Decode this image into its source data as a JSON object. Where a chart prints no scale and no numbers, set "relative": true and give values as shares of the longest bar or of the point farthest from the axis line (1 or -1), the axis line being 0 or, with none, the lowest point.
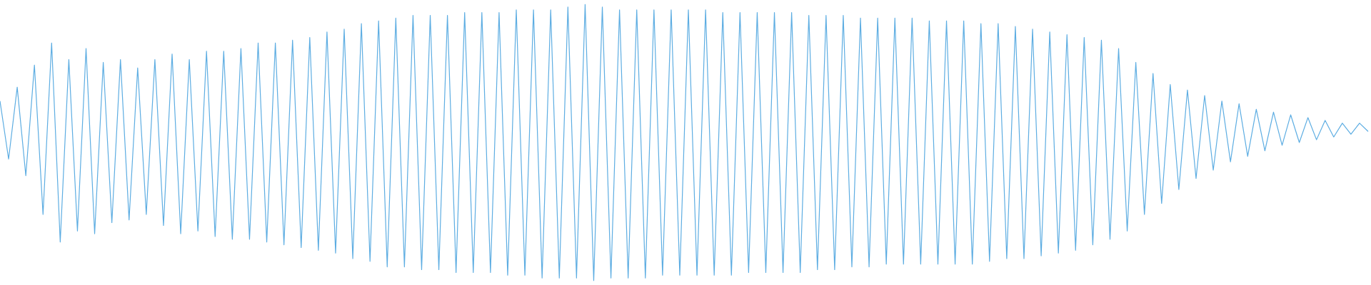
{
  "chart_data": {
    "type": "line",
    "relative": true,
    "tick_labels": false,
    "grid": false,
    "marker": "none",
    "color": "#5dade2",
    "categories": [
      null,
      null,
      null,
      null,
      null,
      null,
      null,
      null,
      null,
      null,
      null,
      null,
      null,
      null,
      null,
      null,
      null,
      null,
      null,
      null,
      null,
      null,
      null,
      null,
      null,
      null,
      null,
      null,
      null,
      null,
      null,
      null,
      null,
      null,
      null,
      null,
      null,
      null,
      null,
      null,
      null,
      null,
      null,
      null,
      null,
      null,
      null,
      null,
      null,
      null,
      null,
      null,
      null,
      null,
      null,
      null,
      null,
      null,
      null,
      null,
      null,
      null,
      null,
      null,
      null,
      null,
      null,
      null,
      null,
      null,
      null,
      null,
      null,
      null,
      null,
      null,
      null,
      null,
      null,
      null,
      null,
      null,
      null,
      null,
      null,
      null,
      null,
      null,
      null,
      null,
      null,
      null,
      null,
      null,
      null,
      null,
      null,
      null,
      null,
      null,
      null,
      null,
      null,
      null,
      null,
      null,
      null,
      null,
      null,
      null,
      null,
      null,
      null,
      null,
      null,
      null,
      null,
      null,
      null,
      null,
      null,
      null,
      null,
      null,
      null,
      null,
      null,
      null,
      null,
      null,
      null,
      null,
      null,
      null,
      null,
      null,
      null,
      null,
      null,
      null,
      null,
      null,
      null,
      null,
      null,
      null,
      null,
      null,
      null,
      null,
      null,
      null,
      null,
      null,
      null,
      null,
      null,
      null,
      null,
      null
    ],
    "values": [
      0.65,
      0.44,
      0.7,
      0.38,
      0.78,
      0.24,
      0.86,
      0.14,
      0.8,
      0.18,
      0.84,
      0.17,
      0.79,
      0.21,
      0.8,
      0.22,
      0.77,
      0.24,
      0.8,
      0.2,
      0.82,
      0.17,
      0.8,
      0.18,
      0.83,
      0.16,
      0.83,
      0.15,
      0.84,
      0.15,
      0.86,
      0.14,
      0.86,
      0.13,
      0.87,
      0.12,
      0.88,
      0.11,
      0.9,
      0.1,
      0.91,
      0.08,
      0.93,
      0.07,
      0.94,
      0.05,
      0.95,
      0.05,
      0.96,
      0.04,
      0.96,
      0.04,
      0.96,
      0.03,
      0.97,
      0.03,
      0.97,
      0.03,
      0.97,
      0.02,
      0.98,
      0.02,
      0.98,
      0.01,
      0.98,
      0.01,
      0.99,
      0.01,
      1.0,
      0.0,
      0.99,
      0.01,
      0.98,
      0.01,
      0.98,
      0.01,
      0.98,
      0.02,
      0.98,
      0.02,
      0.98,
      0.02,
      0.98,
      0.02,
      0.97,
      0.02,
      0.97,
      0.03,
      0.97,
      0.03,
      0.97,
      0.03,
      0.97,
      0.03,
      0.96,
      0.04,
      0.96,
      0.04,
      0.96,
      0.05,
      0.95,
      0.05,
      0.95,
      0.06,
      0.95,
      0.06,
      0.95,
      0.06,
      0.94,
      0.06,
      0.94,
      0.06,
      0.94,
      0.06,
      0.93,
      0.07,
      0.93,
      0.08,
      0.92,
      0.08,
      0.91,
      0.09,
      0.9,
      0.1,
      0.89,
      0.11,
      0.88,
      0.13,
      0.87,
      0.15,
      0.84,
      0.18,
      0.79,
      0.24,
      0.75,
      0.28,
      0.71,
      0.33,
      0.69,
      0.37,
      0.67,
      0.4,
      0.65,
      0.43,
      0.64,
      0.45,
      0.62,
      0.47,
      0.61,
      0.49,
      0.6,
      0.5,
      0.59,
      0.51,
      0.58,
      0.52,
      0.57,
      0.53,
      0.57,
      0.54
    ]
  }
}
